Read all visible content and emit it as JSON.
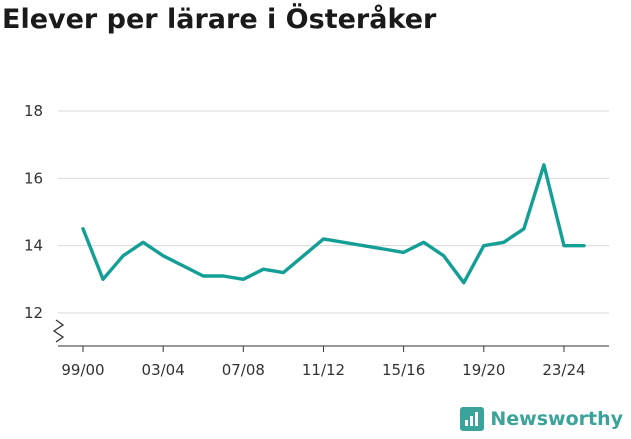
{
  "title": "Elever per lärare i Österåker",
  "brand": {
    "name": "Newsworthy",
    "icon": "newsworthy-logo-icon",
    "color": "#3aa39a"
  },
  "chart_data": {
    "type": "line",
    "title": "Elever per lärare i Österåker",
    "xlabel": "",
    "ylabel": "",
    "ylim": [
      11,
      19
    ],
    "yticks": [
      12,
      14,
      16,
      18
    ],
    "grid": true,
    "axis_break": true,
    "line_color": "#149f96",
    "x_tick_labels": [
      {
        "index": 0,
        "label": "99/00"
      },
      {
        "index": 4,
        "label": "03/04"
      },
      {
        "index": 8,
        "label": "07/08"
      },
      {
        "index": 12,
        "label": "11/12"
      },
      {
        "index": 16,
        "label": "15/16"
      },
      {
        "index": 20,
        "label": "19/20"
      },
      {
        "index": 24,
        "label": "23/24"
      }
    ],
    "series": [
      {
        "x": [
          "99/00",
          "00/01",
          "01/02",
          "02/03",
          "03/04",
          "04/05",
          "05/06",
          "06/07",
          "07/08",
          "08/09",
          "09/10",
          "10/11",
          "11/12",
          "12/13",
          "13/14",
          "14/15",
          "15/16",
          "16/17",
          "17/18",
          "18/19",
          "19/20",
          "20/21",
          "21/22",
          "22/23",
          "23/24",
          "24/25"
        ],
        "values": [
          14.5,
          13.0,
          13.7,
          14.1,
          13.7,
          13.4,
          13.1,
          13.1,
          13.0,
          13.3,
          13.2,
          13.7,
          14.2,
          14.1,
          14.0,
          13.9,
          13.8,
          14.1,
          13.7,
          12.9,
          14.0,
          14.1,
          14.5,
          16.4,
          14.0,
          14.0
        ]
      }
    ]
  }
}
